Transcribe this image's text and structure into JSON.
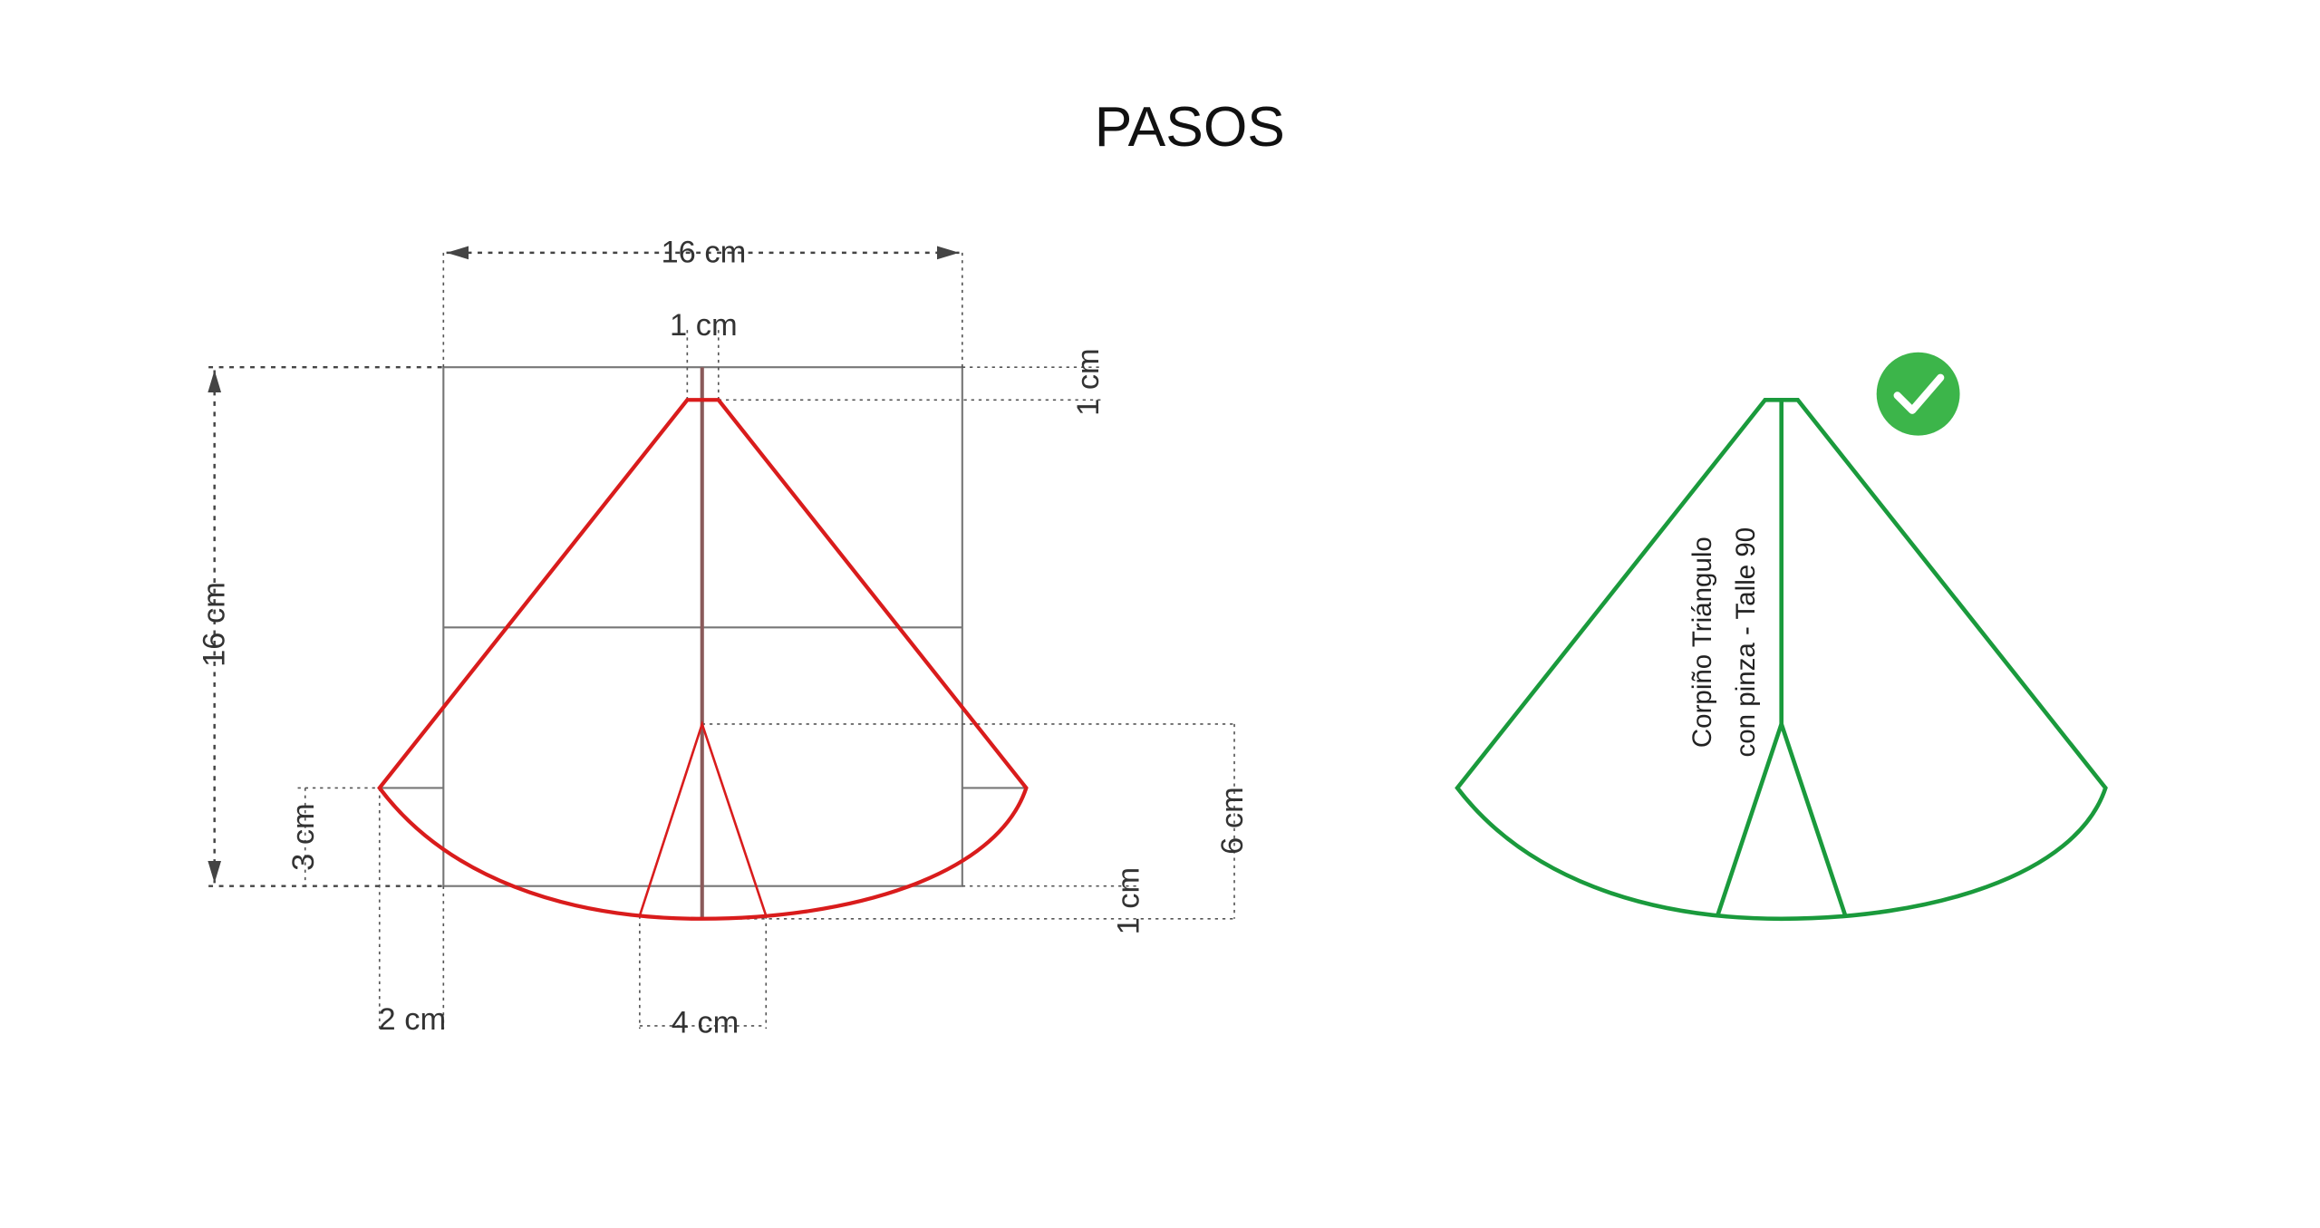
{
  "title": "PASOS",
  "dimensions": {
    "width": "16 cm",
    "top_gap": "1 cm",
    "top_drop": "1 cm",
    "height": "16 cm",
    "side_rise": "3 cm",
    "side_extend": "2 cm",
    "dart_width": "4 cm",
    "dart_height": "6 cm",
    "bottom_drop": "1 cm"
  },
  "pattern_label": [
    "Corpiño Triángulo",
    "con pinza - Talle 90"
  ]
}
